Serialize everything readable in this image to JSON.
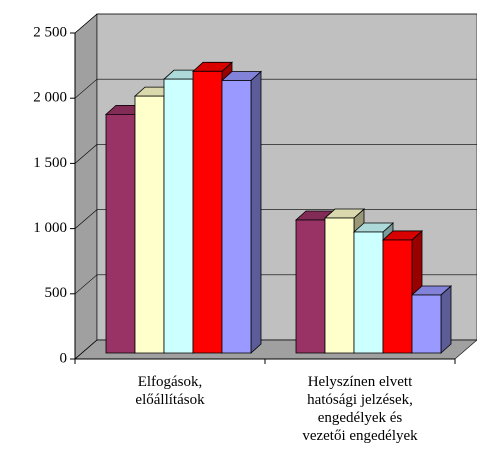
{
  "chart_data": {
    "type": "bar3d",
    "categories": [
      "Elfogások,\nelőállítások",
      "Helyszínen elvett\nhatósági jelzések,\nengedélyek és\nvezetői engedélyek"
    ],
    "series": [
      {
        "color": "#993366",
        "values": [
          1830,
          1020
        ]
      },
      {
        "color": "#FFFFCC",
        "values": [
          1970,
          1035
        ]
      },
      {
        "color": "#CCFFFF",
        "values": [
          2100,
          928
        ]
      },
      {
        "color": "#FF0000",
        "values": [
          2160,
          867
        ]
      },
      {
        "color": "#9999FF",
        "values": [
          2090,
          445
        ]
      }
    ],
    "ylim": [
      0,
      2500
    ],
    "yticks": [
      0,
      500,
      {
        "value": 1000,
        "label": "1 000"
      },
      {
        "value": 1500,
        "label": "1 500"
      },
      {
        "value": 2000,
        "label": "2 000"
      },
      {
        "value": 2500,
        "label": "2 500"
      }
    ],
    "grid": true
  }
}
